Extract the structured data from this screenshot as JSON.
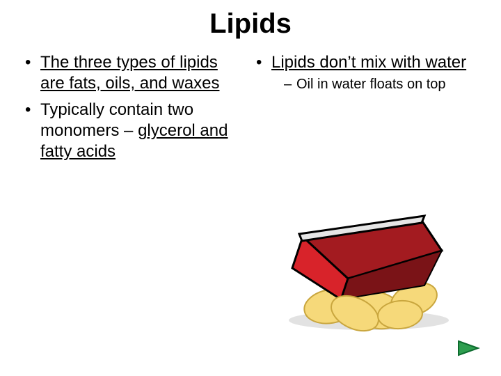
{
  "title": "Lipids",
  "left": {
    "b1a": "The three types of lipids are fats, oils, and waxes",
    "b2_pre": "Typically contain two monomers – ",
    "b2_ul": "glycerol and fatty acids"
  },
  "right": {
    "b1": "Lipids don’t mix with water",
    "s1": "Oil in water floats on top"
  },
  "clipart": {
    "bag_red": "#d8232a",
    "bag_shadow": "#a31b20",
    "bag_top": "#e6e6e6",
    "chip": "#f6d97a",
    "chip_edge": "#c9a63e",
    "outline": "#000000"
  },
  "nav": {
    "fill": "#2e9e4f",
    "stroke": "#0c6b2e"
  }
}
